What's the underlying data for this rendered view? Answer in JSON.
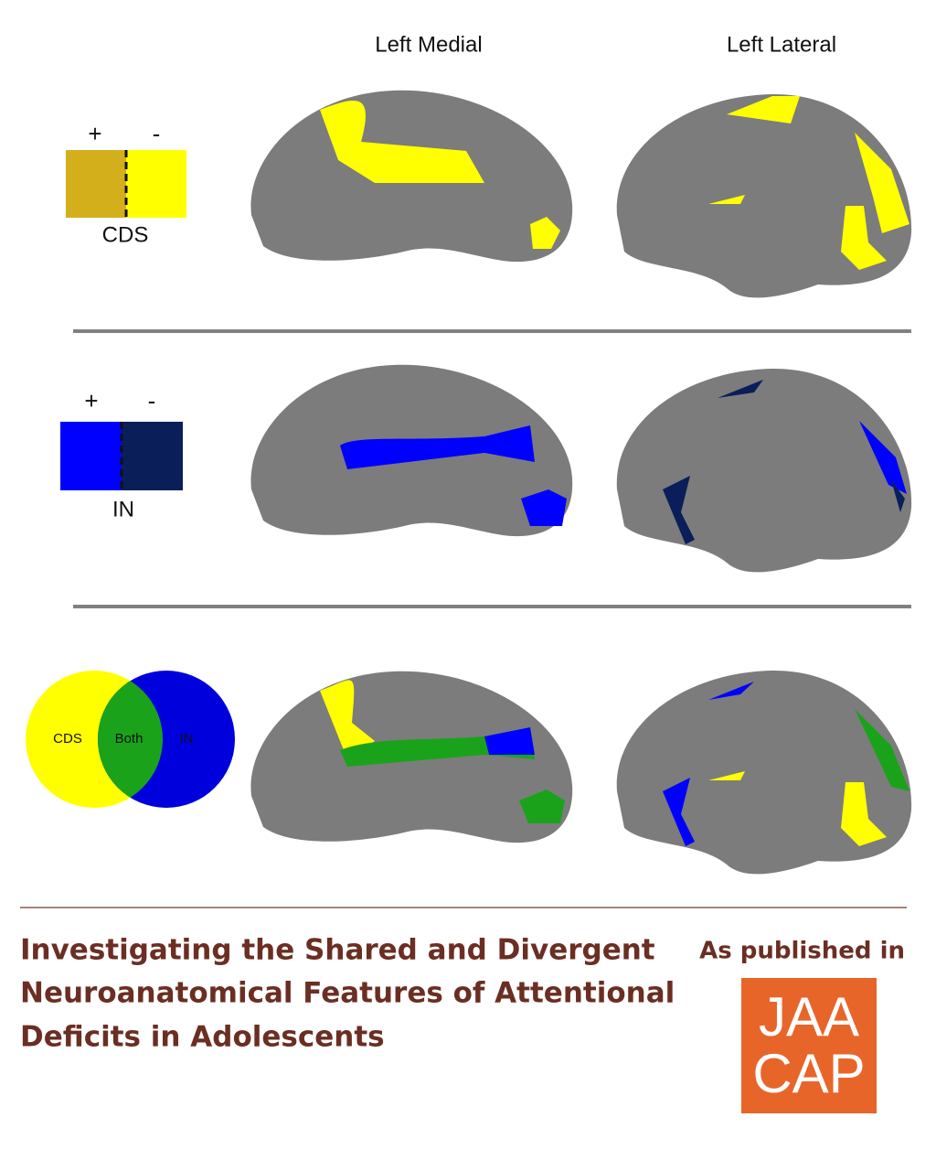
{
  "header": {
    "columns": [
      "Left Medial",
      "Left Lateral"
    ]
  },
  "rows": [
    {
      "legend": {
        "plus": "+",
        "minus": "-",
        "label": "CDS"
      }
    },
    {
      "legend": {
        "plus": "+",
        "minus": "-",
        "label": "IN"
      }
    },
    {
      "venn": {
        "left": "CDS",
        "middle": "Both",
        "right": "IN"
      }
    }
  ],
  "footer": {
    "title_lines": [
      "Investigating the Shared and Divergent",
      "Neuroanatomical Features of Attentional",
      "Deficits in Adolescents"
    ],
    "published": "As published in",
    "journal_lines": [
      "JAA",
      "CAP"
    ]
  }
}
